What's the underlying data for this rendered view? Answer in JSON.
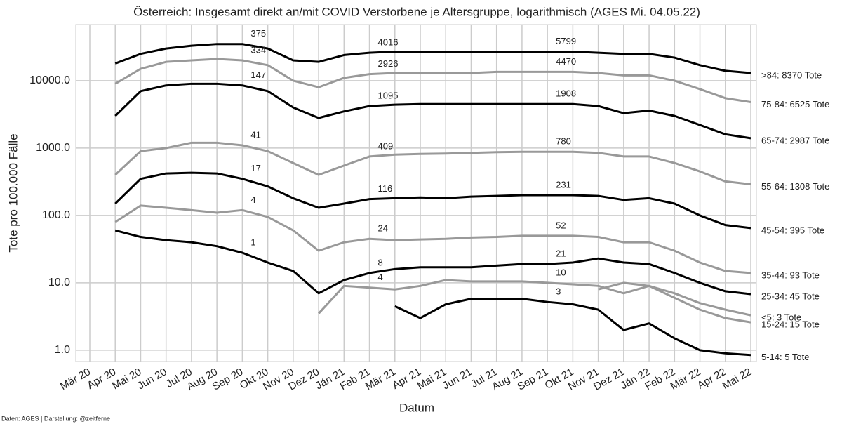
{
  "chart_data": {
    "type": "line",
    "title": "Österreich: Insgesamt direkt an/mit COVID Verstorbene je Altersgruppe, logarithmisch (AGES Mi. 04.05.22)",
    "x_label": "Datum",
    "y_label": "Tote pro 100.000 Fälle",
    "footer": "Daten: AGES | Darstellung: @zeitferne",
    "log_y": true,
    "grid": true,
    "x": [
      "2020-04",
      "2020-05",
      "2020-06",
      "2020-07",
      "2020-08",
      "2020-09",
      "2020-10",
      "2020-11",
      "2020-12",
      "2021-01",
      "2021-02",
      "2021-03",
      "2021-04",
      "2021-05",
      "2021-06",
      "2021-07",
      "2021-08",
      "2021-09",
      "2021-10",
      "2021-11",
      "2021-12",
      "2022-01",
      "2022-02",
      "2022-03",
      "2022-04",
      "2022-05"
    ],
    "xlim": [
      "2020-03",
      "2022-05"
    ],
    "xticks": [
      {
        "value": "2020-03",
        "label": "Mär 20"
      },
      {
        "value": "2020-04",
        "label": "Apr 20"
      },
      {
        "value": "2020-05",
        "label": "Mai 20"
      },
      {
        "value": "2020-06",
        "label": "Jun 20"
      },
      {
        "value": "2020-07",
        "label": "Jul 20"
      },
      {
        "value": "2020-08",
        "label": "Aug 20"
      },
      {
        "value": "2020-09",
        "label": "Sep 20"
      },
      {
        "value": "2020-10",
        "label": "Okt 20"
      },
      {
        "value": "2020-11",
        "label": "Nov 20"
      },
      {
        "value": "2020-12",
        "label": "Dez 20"
      },
      {
        "value": "2021-01",
        "label": "Jän 21"
      },
      {
        "value": "2021-02",
        "label": "Feb 21"
      },
      {
        "value": "2021-03",
        "label": "Mär 21"
      },
      {
        "value": "2021-04",
        "label": "Apr 21"
      },
      {
        "value": "2021-05",
        "label": "Mai 21"
      },
      {
        "value": "2021-06",
        "label": "Jun 21"
      },
      {
        "value": "2021-07",
        "label": "Jul 21"
      },
      {
        "value": "2021-08",
        "label": "Aug 21"
      },
      {
        "value": "2021-09",
        "label": "Sep 21"
      },
      {
        "value": "2021-10",
        "label": "Okt 21"
      },
      {
        "value": "2021-11",
        "label": "Nov 21"
      },
      {
        "value": "2021-12",
        "label": "Dez 21"
      },
      {
        "value": "2022-01",
        "label": "Jän 22"
      },
      {
        "value": "2022-02",
        "label": "Feb 22"
      },
      {
        "value": "2022-03",
        "label": "Mär 22"
      },
      {
        "value": "2022-04",
        "label": "Apr 22"
      },
      {
        "value": "2022-05",
        "label": "Mai 22"
      }
    ],
    "ylim": [
      0.68,
      68000
    ],
    "yticks": [
      {
        "value": 1,
        "label": "1.0"
      },
      {
        "value": 10,
        "label": "10.0"
      },
      {
        "value": 100,
        "label": "100.0"
      },
      {
        "value": 1000,
        "label": "1000.0"
      },
      {
        "value": 10000,
        "label": "10000.0"
      }
    ],
    "series": [
      {
        "name": ">84: 8370 Tote",
        "color": "#000000",
        "deaths": [
          375,
          4016,
          5799
        ],
        "values": [
          18000,
          25000,
          30000,
          33000,
          35000,
          35000,
          30000,
          20000,
          19000,
          24000,
          26000,
          27000,
          27000,
          27000,
          27000,
          27000,
          27000,
          27000,
          27000,
          26000,
          25000,
          25000,
          22000,
          17000,
          14000,
          13000
        ]
      },
      {
        "name": "75-84: 6525 Tote",
        "color": "#999999",
        "deaths": [
          334,
          2926,
          4470
        ],
        "values": [
          9000,
          15000,
          19000,
          20000,
          21000,
          20000,
          17000,
          10000,
          8000,
          11000,
          12500,
          13000,
          13000,
          13000,
          13000,
          13500,
          13500,
          13500,
          13500,
          13000,
          12000,
          12000,
          10000,
          7500,
          5500,
          4800
        ]
      },
      {
        "name": "65-74: 2987 Tote",
        "color": "#000000",
        "deaths": [
          147,
          1095,
          1908
        ],
        "values": [
          3000,
          7000,
          8500,
          9000,
          9000,
          8500,
          7000,
          4000,
          2800,
          3500,
          4200,
          4400,
          4500,
          4500,
          4500,
          4500,
          4500,
          4500,
          4500,
          4200,
          3300,
          3600,
          3000,
          2200,
          1600,
          1400
        ]
      },
      {
        "name": "55-64: 1308 Tote",
        "color": "#999999",
        "deaths": [
          41,
          409,
          780
        ],
        "values": [
          400,
          900,
          1000,
          1200,
          1200,
          1100,
          900,
          600,
          400,
          550,
          750,
          800,
          820,
          830,
          850,
          870,
          880,
          880,
          880,
          850,
          750,
          750,
          600,
          450,
          320,
          290
        ]
      },
      {
        "name": "45-54: 395 Tote",
        "color": "#000000",
        "deaths": [
          17,
          116,
          231
        ],
        "values": [
          150,
          350,
          420,
          430,
          420,
          350,
          270,
          180,
          130,
          150,
          175,
          180,
          185,
          180,
          190,
          195,
          200,
          200,
          200,
          195,
          170,
          180,
          150,
          100,
          72,
          65
        ]
      },
      {
        "name": "35-44: 93 Tote",
        "color": "#999999",
        "deaths": [
          4,
          24,
          52
        ],
        "values": [
          80,
          140,
          130,
          120,
          110,
          120,
          95,
          60,
          30,
          40,
          45,
          43,
          44,
          45,
          47,
          48,
          50,
          50,
          50,
          48,
          40,
          40,
          30,
          20,
          15,
          14
        ]
      },
      {
        "name": "25-34: 45 Tote",
        "color": "#000000",
        "deaths": [
          1,
          8,
          21
        ],
        "values": [
          60,
          48,
          43,
          40,
          35,
          28,
          20,
          15,
          7,
          11,
          14,
          16,
          17,
          17,
          17,
          18,
          19,
          19,
          20,
          23,
          20,
          19,
          14,
          10,
          7.5,
          6.8
        ]
      },
      {
        "name": "<5: 3 Tote",
        "color": "#999999",
        "values": [
          null,
          null,
          null,
          null,
          null,
          null,
          null,
          null,
          null,
          null,
          null,
          null,
          null,
          null,
          null,
          null,
          null,
          null,
          null,
          8,
          10,
          9,
          7,
          5,
          4,
          3.3
        ]
      },
      {
        "name": "15-24: 15 Tote",
        "color": "#999999",
        "deaths": [
          null,
          4,
          10
        ],
        "values": [
          null,
          null,
          null,
          null,
          null,
          null,
          null,
          null,
          3.5,
          9,
          8.5,
          8,
          9,
          11,
          10.5,
          10.5,
          10.5,
          10,
          9.5,
          9,
          7,
          9,
          6,
          4,
          3,
          2.6
        ]
      },
      {
        "name": "5-14: 5 Tote",
        "color": "#000000",
        "deaths": [
          null,
          null,
          3
        ],
        "values": [
          null,
          null,
          null,
          null,
          null,
          null,
          null,
          null,
          null,
          null,
          null,
          4.5,
          3,
          4.8,
          5.8,
          5.8,
          5.8,
          5.2,
          4.8,
          4,
          2,
          2.5,
          1.5,
          1,
          0.9,
          0.85
        ]
      }
    ]
  }
}
